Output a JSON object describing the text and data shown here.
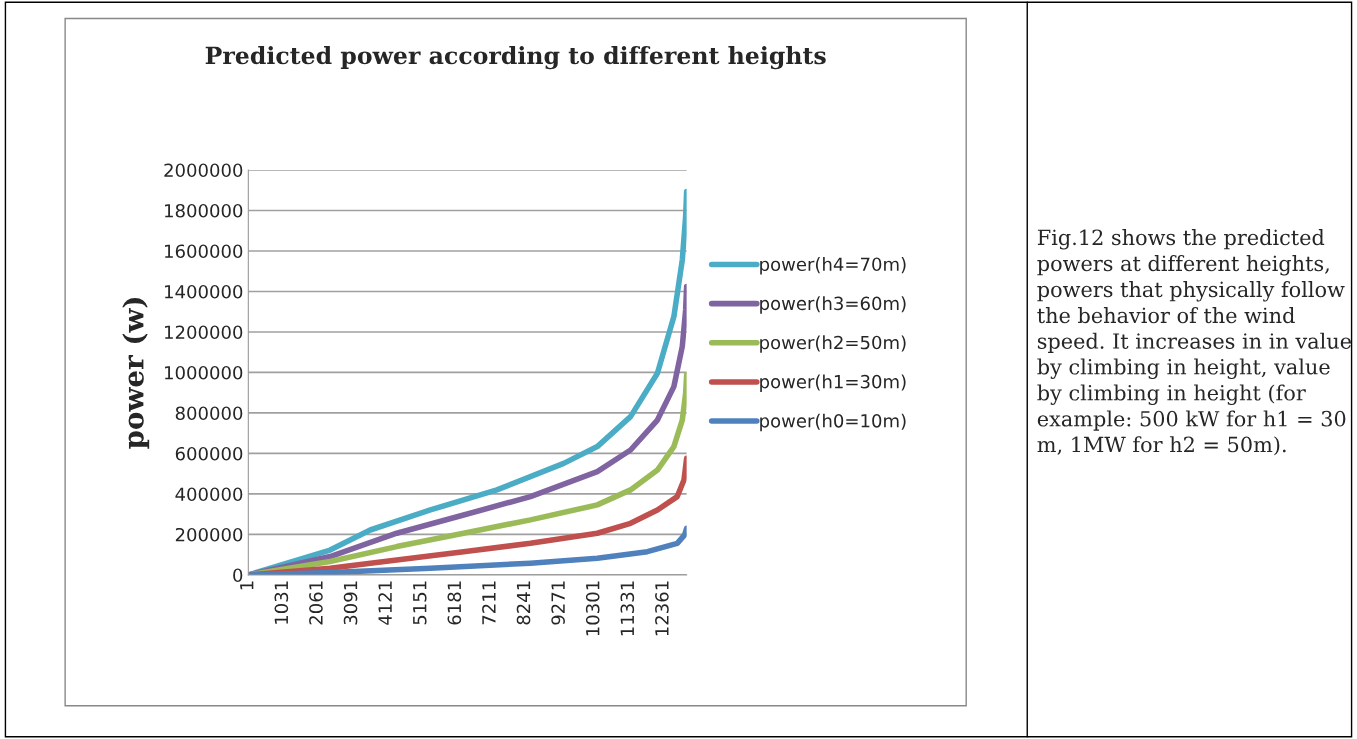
{
  "chart_data": {
    "type": "line",
    "title": "Predicted power according to different heights",
    "ylabel": "power (w)",
    "xlim": [
      1,
      13050
    ],
    "xticks": [
      1,
      1031,
      2061,
      3091,
      4121,
      5151,
      6181,
      7211,
      8241,
      9271,
      10301,
      11331,
      12361
    ],
    "ylim": [
      0,
      2000000
    ],
    "yticks": [
      0,
      200000,
      400000,
      600000,
      800000,
      1000000,
      1200000,
      1400000,
      1600000,
      1800000,
      2000000
    ],
    "grid": "y",
    "legend": "right",
    "marker": "none",
    "line_style": "solid",
    "series": [
      {
        "name": "power(h4=70m)",
        "color": "#4bacc6",
        "x": [
          1,
          2435,
          3630,
          5420,
          7400,
          9390,
          10390,
          11380,
          12180,
          12670,
          12920,
          13020,
          13050
        ],
        "values": [
          0,
          123000,
          222000,
          321000,
          420000,
          551000,
          634000,
          782000,
          996000,
          1276000,
          1555000,
          1770000,
          1893000
        ]
      },
      {
        "name": "power(h3=60m)",
        "color": "#8064a2",
        "x": [
          1,
          2435,
          4420,
          6410,
          8400,
          10390,
          11380,
          12180,
          12670,
          12920,
          13020,
          13050
        ],
        "values": [
          0,
          91000,
          206000,
          296000,
          387000,
          510000,
          617000,
          765000,
          930000,
          1128000,
          1309000,
          1424000
        ]
      },
      {
        "name": "power(h2=50m)",
        "color": "#9bbb59",
        "x": [
          1,
          2435,
          4420,
          6410,
          8400,
          10390,
          11380,
          12180,
          12670,
          12920,
          13020,
          13050
        ],
        "values": [
          0,
          66000,
          140000,
          206000,
          272000,
          346000,
          420000,
          518000,
          634000,
          765000,
          897000,
          988000
        ]
      },
      {
        "name": "power(h1=30m)",
        "color": "#c0504d",
        "x": [
          1,
          2435,
          4420,
          6410,
          8400,
          10390,
          11380,
          12180,
          12770,
          12970,
          13050
        ],
        "values": [
          0,
          33000,
          74000,
          115000,
          156000,
          206000,
          255000,
          321000,
          387000,
          469000,
          576000
        ]
      },
      {
        "name": "power(h0=10m)",
        "color": "#4f81bd",
        "x": [
          1,
          2435,
          5420,
          8400,
          10390,
          11880,
          12770,
          12990,
          13050
        ],
        "values": [
          0,
          12000,
          33000,
          58000,
          82000,
          115000,
          156000,
          198000,
          230000
        ]
      }
    ],
    "annotations": [
      "Fig.12 shows the predicted powers at different heights, powers that physically follow the behavior of the wind speed. It increases in in value by climbing in height, value by climbing in height (for example: 500 kW for h1 = 30 m, 1MW for h2 = 50m)."
    ]
  }
}
